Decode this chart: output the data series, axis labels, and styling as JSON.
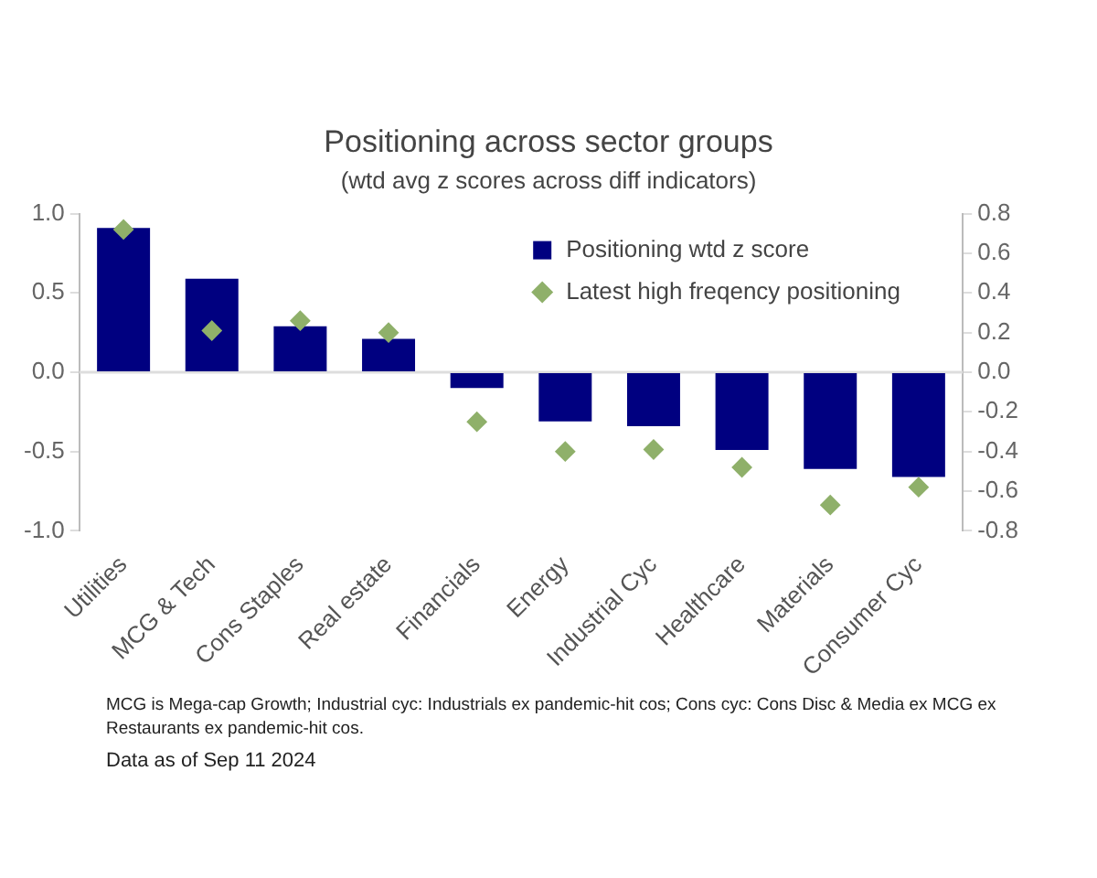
{
  "chart_data": {
    "type": "bar",
    "title": "Positioning across sector groups",
    "subtitle": "(wtd avg z scores across diff indicators)",
    "categories": [
      "Utilities",
      "MCG & Tech",
      "Cons Staples",
      "Real estate",
      "Financials",
      "Energy",
      "Industrial Cyc",
      "Healthcare",
      "Materials",
      "Consumer Cyc"
    ],
    "series": [
      {
        "name": "Positioning wtd z score",
        "color": "#000080",
        "values": [
          0.91,
          0.59,
          0.29,
          0.21,
          -0.1,
          -0.31,
          -0.34,
          -0.49,
          -0.61,
          -0.66
        ]
      },
      {
        "name": "Latest high freqency positioning",
        "type": "scatter",
        "axis": "y2",
        "marker": "diamond",
        "color": "#8fb06a",
        "values": [
          0.72,
          0.21,
          0.26,
          0.2,
          -0.25,
          -0.4,
          -0.39,
          -0.48,
          -0.67,
          -0.58
        ]
      }
    ],
    "ylim": [
      -1,
      1
    ],
    "yticks": [
      {
        "value": -1,
        "label": "-1.0"
      },
      {
        "value": -0.5,
        "label": "-0.5"
      },
      {
        "value": 0,
        "label": "0.0"
      },
      {
        "value": 0.5,
        "label": "0.5"
      },
      {
        "value": 1,
        "label": "1.0"
      }
    ],
    "y2lim": [
      -0.8,
      0.8
    ],
    "y2ticks": [
      -0.8,
      -0.6,
      -0.4,
      -0.2,
      {
        "value": 0,
        "label": "0.0"
      },
      0.2,
      0.4,
      0.6,
      0.8
    ],
    "grid": false,
    "ref_lines": [
      {
        "axis": "y",
        "value": 0,
        "color": "#dddddd"
      }
    ],
    "legend": "top right",
    "annotations": [
      "MCG is Mega-cap Growth; Industrial cyc: Industrials ex pandemic-hit cos; Cons cyc: Cons Disc & Media ex MCG ex Restaurants ex pandemic-hit cos.",
      "Data as of Sep 11 2024"
    ]
  }
}
